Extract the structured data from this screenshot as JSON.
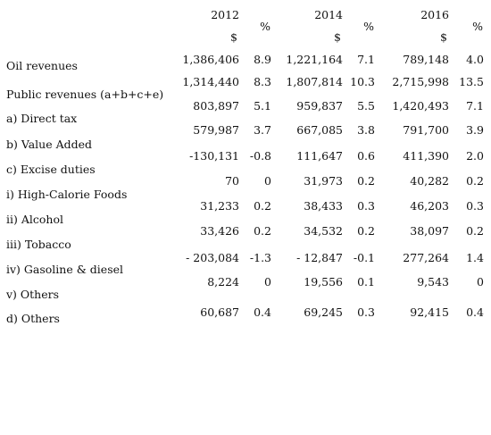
{
  "header": {
    "years": [
      "2012",
      "2014",
      "2016"
    ],
    "units": [
      "$",
      "$",
      "$"
    ],
    "pct": [
      "%",
      "%",
      "%"
    ]
  },
  "table": {
    "rows": [
      {
        "label": "Oil revenues",
        "cells": [
          "1,386,406",
          "8.9",
          "1,221,164",
          "7.1",
          "789,148",
          "4.0"
        ]
      },
      {
        "label": "Public revenues (a+b+c+e)",
        "cells": [
          "1,314,440",
          "8.3",
          "1,807,814",
          "10.3",
          "2,715,998",
          "13.5"
        ]
      },
      {
        "label": "a) Direct tax",
        "cells": [
          "803,897",
          "5.1",
          "959,837",
          "5.5",
          "1,420,493",
          "7.1"
        ]
      },
      {
        "label": "b) Value Added",
        "cells": [
          "579,987",
          "3.7",
          "667,085",
          "3.8",
          "791,700",
          "3.9"
        ]
      },
      {
        "label": "c) Excise duties",
        "cells": [
          "-130,131",
          "-0.8",
          "111,647",
          "0.6",
          "411,390",
          "2.0"
        ]
      },
      {
        "label": "i) High-Calorie Foods",
        "cells": [
          "70",
          "0",
          "31,973",
          "0.2",
          "40,282",
          "0.2"
        ]
      },
      {
        "label": "ii) Alcohol",
        "cells": [
          "31,233",
          "0.2",
          "38,433",
          "0.3",
          "46,203",
          "0.3"
        ]
      },
      {
        "label": "iii) Tobacco",
        "cells": [
          "33,426",
          "0.2",
          "34,532",
          "0.2",
          "38,097",
          "0.2"
        ]
      },
      {
        "label": "iv) Gasoline & diesel",
        "cells": [
          "- 203,084",
          "-1.3",
          "- 12,847",
          "-0.1",
          "277,264",
          "1.4"
        ]
      },
      {
        "label": "v) Others",
        "cells": [
          "8,224",
          "0",
          "19,556",
          "0.1",
          "9,543",
          "0"
        ]
      },
      {
        "label": "d) Others",
        "cells": [
          "60,687",
          "0.4",
          "69,245",
          "0.3",
          "92,415",
          "0.4"
        ]
      }
    ]
  }
}
